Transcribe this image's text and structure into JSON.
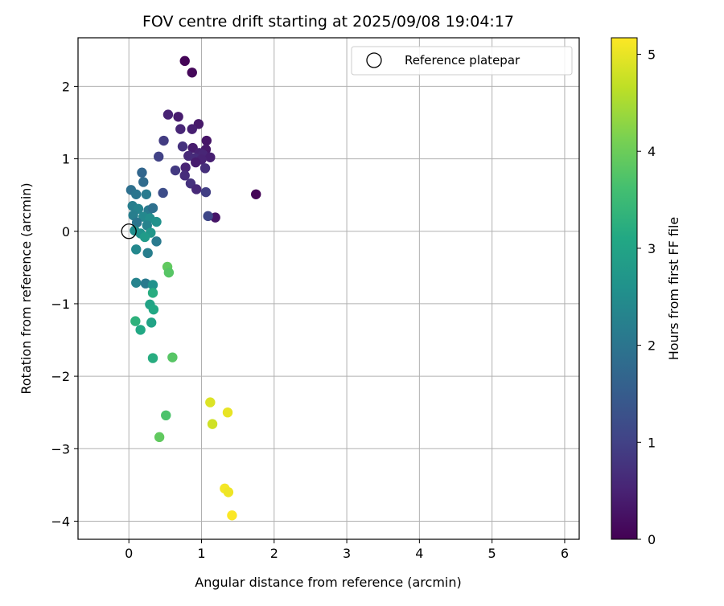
{
  "chart_data": {
    "type": "scatter",
    "title": "FOV centre drift starting at 2025/09/08 19:04:17",
    "xlabel": "Angular distance from reference (arcmin)",
    "ylabel": "Rotation from reference (arcmin)",
    "xlim": [
      -0.7,
      6.2
    ],
    "ylim": [
      -4.25,
      2.67
    ],
    "xticks": [
      0,
      1,
      2,
      3,
      4,
      5,
      6
    ],
    "yticks": [
      -4,
      -3,
      -2,
      -1,
      0,
      1,
      2
    ],
    "grid": true,
    "legend": {
      "position": "top-right",
      "entries": [
        "Reference platepar"
      ]
    },
    "reference_point": {
      "x": 0,
      "y": 0
    },
    "colorbar": {
      "label": "Hours from first FF file",
      "range": [
        0,
        5.17
      ],
      "ticks": [
        0,
        1,
        2,
        3,
        4,
        5
      ],
      "colormap": "viridis"
    },
    "points": [
      {
        "x": 0.77,
        "y": 2.35,
        "h": 0.05
      },
      {
        "x": 0.87,
        "y": 2.19,
        "h": 0.1
      },
      {
        "x": 1.75,
        "y": 0.51,
        "h": 0.05
      },
      {
        "x": 1.19,
        "y": 0.19,
        "h": 0.3
      },
      {
        "x": 0.54,
        "y": 1.61,
        "h": 0.5
      },
      {
        "x": 0.68,
        "y": 1.58,
        "h": 0.4
      },
      {
        "x": 0.96,
        "y": 1.48,
        "h": 0.35
      },
      {
        "x": 0.87,
        "y": 1.41,
        "h": 0.45
      },
      {
        "x": 0.71,
        "y": 1.41,
        "h": 0.55
      },
      {
        "x": 1.07,
        "y": 1.25,
        "h": 0.3
      },
      {
        "x": 0.48,
        "y": 1.25,
        "h": 0.9
      },
      {
        "x": 0.74,
        "y": 1.17,
        "h": 0.75
      },
      {
        "x": 0.88,
        "y": 1.15,
        "h": 0.4
      },
      {
        "x": 1.06,
        "y": 1.13,
        "h": 0.35
      },
      {
        "x": 0.97,
        "y": 1.08,
        "h": 0.5
      },
      {
        "x": 1.02,
        "y": 1.06,
        "h": 0.55
      },
      {
        "x": 0.82,
        "y": 1.04,
        "h": 0.6
      },
      {
        "x": 0.91,
        "y": 1.01,
        "h": 0.65
      },
      {
        "x": 1.12,
        "y": 1.02,
        "h": 0.45
      },
      {
        "x": 1.0,
        "y": 0.99,
        "h": 0.5
      },
      {
        "x": 0.41,
        "y": 1.03,
        "h": 1.0
      },
      {
        "x": 0.92,
        "y": 0.95,
        "h": 0.4
      },
      {
        "x": 0.78,
        "y": 0.88,
        "h": 0.5
      },
      {
        "x": 1.05,
        "y": 0.87,
        "h": 0.7
      },
      {
        "x": 0.64,
        "y": 0.84,
        "h": 0.85
      },
      {
        "x": 0.77,
        "y": 0.77,
        "h": 0.65
      },
      {
        "x": 0.85,
        "y": 0.66,
        "h": 0.75
      },
      {
        "x": 0.93,
        "y": 0.58,
        "h": 0.6
      },
      {
        "x": 1.06,
        "y": 0.54,
        "h": 0.95
      },
      {
        "x": 0.47,
        "y": 0.53,
        "h": 1.2
      },
      {
        "x": 1.09,
        "y": 0.21,
        "h": 1.1
      },
      {
        "x": 0.18,
        "y": 0.81,
        "h": 1.7
      },
      {
        "x": 0.2,
        "y": 0.68,
        "h": 1.8
      },
      {
        "x": 0.03,
        "y": 0.57,
        "h": 1.9
      },
      {
        "x": 0.1,
        "y": 0.51,
        "h": 2.0
      },
      {
        "x": 0.24,
        "y": 0.51,
        "h": 2.1
      },
      {
        "x": 0.05,
        "y": 0.35,
        "h": 2.2
      },
      {
        "x": 0.13,
        "y": 0.31,
        "h": 2.3
      },
      {
        "x": 0.27,
        "y": 0.29,
        "h": 2.1
      },
      {
        "x": 0.33,
        "y": 0.32,
        "h": 1.9
      },
      {
        "x": 0.06,
        "y": 0.22,
        "h": 2.2
      },
      {
        "x": 0.2,
        "y": 0.2,
        "h": 2.4
      },
      {
        "x": 0.29,
        "y": 0.18,
        "h": 2.5
      },
      {
        "x": 0.38,
        "y": 0.13,
        "h": 2.6
      },
      {
        "x": 0.11,
        "y": 0.12,
        "h": 2.0
      },
      {
        "x": 0.25,
        "y": 0.08,
        "h": 2.3
      },
      {
        "x": 0.08,
        "y": 0.01,
        "h": 2.5
      },
      {
        "x": 0.16,
        "y": -0.03,
        "h": 2.6
      },
      {
        "x": 0.3,
        "y": -0.02,
        "h": 2.7
      },
      {
        "x": 0.22,
        "y": -0.08,
        "h": 2.8
      },
      {
        "x": 0.38,
        "y": -0.14,
        "h": 2.1
      },
      {
        "x": 0.1,
        "y": -0.25,
        "h": 2.4
      },
      {
        "x": 0.26,
        "y": -0.3,
        "h": 2.2
      },
      {
        "x": 0.1,
        "y": -0.71,
        "h": 2.3
      },
      {
        "x": 0.23,
        "y": -0.72,
        "h": 2.1
      },
      {
        "x": 0.33,
        "y": -0.74,
        "h": 2.6
      },
      {
        "x": 0.53,
        "y": -0.49,
        "h": 3.9
      },
      {
        "x": 0.55,
        "y": -0.57,
        "h": 3.8
      },
      {
        "x": 0.33,
        "y": -0.85,
        "h": 3.2
      },
      {
        "x": 0.29,
        "y": -1.01,
        "h": 3.0
      },
      {
        "x": 0.34,
        "y": -1.08,
        "h": 3.1
      },
      {
        "x": 0.09,
        "y": -1.24,
        "h": 3.3
      },
      {
        "x": 0.31,
        "y": -1.26,
        "h": 3.0
      },
      {
        "x": 0.16,
        "y": -1.36,
        "h": 3.1
      },
      {
        "x": 0.33,
        "y": -1.75,
        "h": 3.2
      },
      {
        "x": 0.6,
        "y": -1.74,
        "h": 3.8
      },
      {
        "x": 0.51,
        "y": -2.54,
        "h": 3.7
      },
      {
        "x": 0.42,
        "y": -2.84,
        "h": 3.9
      },
      {
        "x": 1.12,
        "y": -2.36,
        "h": 4.9
      },
      {
        "x": 1.36,
        "y": -2.5,
        "h": 5.0
      },
      {
        "x": 1.15,
        "y": -2.66,
        "h": 4.8
      },
      {
        "x": 1.32,
        "y": -3.55,
        "h": 5.1
      },
      {
        "x": 1.37,
        "y": -3.6,
        "h": 5.05
      },
      {
        "x": 1.42,
        "y": -3.92,
        "h": 5.15
      }
    ]
  }
}
